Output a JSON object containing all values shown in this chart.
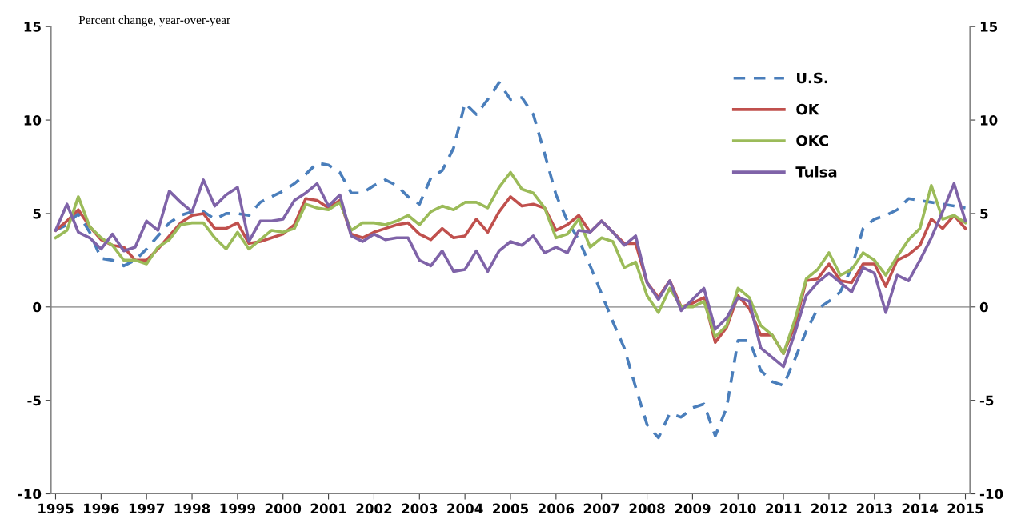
{
  "chart_data": {
    "type": "line",
    "ylabel": "Percent change, year-over-year",
    "x": [
      1995,
      1995.25,
      1995.5,
      1995.75,
      1996,
      1996.25,
      1996.5,
      1996.75,
      1997,
      1997.25,
      1997.5,
      1997.75,
      1998,
      1998.25,
      1998.5,
      1998.75,
      1999,
      1999.25,
      1999.5,
      1999.75,
      2000,
      2000.25,
      2000.5,
      2000.75,
      2001,
      2001.25,
      2001.5,
      2001.75,
      2002,
      2002.25,
      2002.5,
      2002.75,
      2003,
      2003.25,
      2003.5,
      2003.75,
      2004,
      2004.25,
      2004.5,
      2004.75,
      2005,
      2005.25,
      2005.5,
      2005.75,
      2006,
      2006.25,
      2006.5,
      2006.75,
      2007,
      2007.25,
      2007.5,
      2007.75,
      2008,
      2008.25,
      2008.5,
      2008.75,
      2009,
      2009.25,
      2009.5,
      2009.75,
      2010,
      2010.25,
      2010.5,
      2010.75,
      2011,
      2011.25,
      2011.5,
      2011.75,
      2012,
      2012.25,
      2012.5,
      2012.75,
      2013,
      2013.25,
      2013.5,
      2013.75,
      2014,
      2014.25,
      2014.5,
      2014.75,
      2015
    ],
    "series": [
      {
        "name": "U.S.",
        "color": "#4a7ebb",
        "line_style": "dashed",
        "values": [
          4.1,
          4.4,
          5.0,
          4.0,
          2.6,
          2.5,
          2.2,
          2.5,
          3.1,
          3.8,
          4.5,
          4.9,
          5.1,
          5.1,
          4.7,
          5.0,
          5.0,
          4.9,
          5.6,
          5.9,
          6.2,
          6.6,
          7.1,
          7.7,
          7.6,
          7.2,
          6.1,
          6.1,
          6.5,
          6.8,
          6.5,
          5.9,
          5.5,
          6.9,
          7.3,
          8.5,
          10.9,
          10.3,
          11.1,
          12.0,
          11.1,
          11.2,
          10.3,
          8.2,
          6.0,
          4.6,
          3.6,
          2.2,
          0.7,
          -0.8,
          -2.2,
          -4.3,
          -6.3,
          -7.0,
          -5.7,
          -5.9,
          -5.4,
          -5.2,
          -6.9,
          -5.4,
          -1.8,
          -1.8,
          -3.4,
          -4.0,
          -4.2,
          -2.8,
          -1.3,
          -0.1,
          0.3,
          0.8,
          2.1,
          4.2,
          4.7,
          4.9,
          5.2,
          5.8,
          5.7,
          5.6,
          5.5,
          5.4,
          5.3
        ]
      },
      {
        "name": "OK",
        "color": "#c0504d",
        "values": [
          4.1,
          4.6,
          5.2,
          4.3,
          3.6,
          3.3,
          3.2,
          2.5,
          2.5,
          3.1,
          3.8,
          4.5,
          4.9,
          5.0,
          4.2,
          4.2,
          4.5,
          3.4,
          3.5,
          3.7,
          3.9,
          4.4,
          5.8,
          5.7,
          5.3,
          5.7,
          3.9,
          3.7,
          4.0,
          4.2,
          4.4,
          4.5,
          3.9,
          3.6,
          4.2,
          3.7,
          3.8,
          4.7,
          4.0,
          5.1,
          5.9,
          5.4,
          5.5,
          5.3,
          4.1,
          4.4,
          4.9,
          4.0,
          4.6,
          4.0,
          3.4,
          3.4,
          1.3,
          0.5,
          1.4,
          0.0,
          0.2,
          0.5,
          -1.9,
          -1.1,
          0.6,
          -0.1,
          -1.5,
          -1.5,
          -2.5,
          -1.0,
          1.4,
          1.5,
          2.3,
          1.4,
          1.3,
          2.3,
          2.3,
          1.1,
          2.5,
          2.8,
          3.3,
          4.7,
          4.2,
          4.9,
          4.2
        ]
      },
      {
        "name": "OKC",
        "color": "#9bbb59",
        "values": [
          3.7,
          4.1,
          5.9,
          4.3,
          3.7,
          3.3,
          2.5,
          2.5,
          2.3,
          3.2,
          3.6,
          4.4,
          4.5,
          4.5,
          3.7,
          3.1,
          4.0,
          3.1,
          3.6,
          4.1,
          4.0,
          4.2,
          5.5,
          5.3,
          5.2,
          5.6,
          4.1,
          4.5,
          4.5,
          4.4,
          4.6,
          4.9,
          4.4,
          5.1,
          5.4,
          5.2,
          5.6,
          5.6,
          5.3,
          6.4,
          7.2,
          6.3,
          6.1,
          5.3,
          3.7,
          3.9,
          4.7,
          3.2,
          3.7,
          3.5,
          2.1,
          2.4,
          0.6,
          -0.3,
          1.0,
          0.0,
          0.0,
          0.3,
          -1.6,
          -1.0,
          1.0,
          0.5,
          -1.0,
          -1.5,
          -2.5,
          -0.7,
          1.5,
          2.0,
          2.9,
          1.7,
          2.0,
          2.9,
          2.5,
          1.7,
          2.7,
          3.6,
          4.2,
          6.5,
          4.7,
          4.9,
          4.5
        ]
      },
      {
        "name": "Tulsa",
        "color": "#7f63a8",
        "values": [
          4.1,
          5.5,
          4.0,
          3.7,
          3.1,
          3.9,
          3.0,
          3.2,
          4.6,
          4.1,
          6.2,
          5.6,
          5.1,
          6.8,
          5.4,
          6.0,
          6.4,
          3.5,
          4.6,
          4.6,
          4.7,
          5.7,
          6.1,
          6.6,
          5.4,
          6.0,
          3.8,
          3.5,
          3.9,
          3.6,
          3.7,
          3.7,
          2.5,
          2.2,
          3.0,
          1.9,
          2.0,
          3.0,
          1.9,
          3.0,
          3.5,
          3.3,
          3.8,
          2.9,
          3.2,
          2.9,
          4.1,
          4.0,
          4.6,
          4.0,
          3.3,
          3.8,
          1.3,
          0.4,
          1.4,
          -0.2,
          0.4,
          1.0,
          -1.2,
          -0.6,
          0.5,
          0.3,
          -2.2,
          -2.7,
          -3.2,
          -1.4,
          0.6,
          1.3,
          1.8,
          1.3,
          0.8,
          2.1,
          1.8,
          -0.3,
          1.7,
          1.4,
          2.5,
          3.7,
          5.1,
          6.6,
          4.6
        ]
      }
    ],
    "xlim": [
      1994.9,
      2015.1
    ],
    "xticks": [
      1995,
      1996,
      1997,
      1998,
      1999,
      2000,
      2001,
      2002,
      2003,
      2004,
      2005,
      2006,
      2007,
      2008,
      2009,
      2010,
      2011,
      2012,
      2013,
      2014,
      2015
    ],
    "ylim": [
      -10,
      15
    ],
    "yticks": [
      -10,
      -5,
      0,
      5,
      10,
      15
    ],
    "y2lim": [
      -10,
      15
    ],
    "y2ticks": [
      -10,
      -5,
      0,
      5,
      10,
      15
    ],
    "ref_lines": [
      {
        "axis": "y",
        "value": 0,
        "color": "#a6a6a6"
      }
    ],
    "grid": false,
    "legend": "top right"
  }
}
